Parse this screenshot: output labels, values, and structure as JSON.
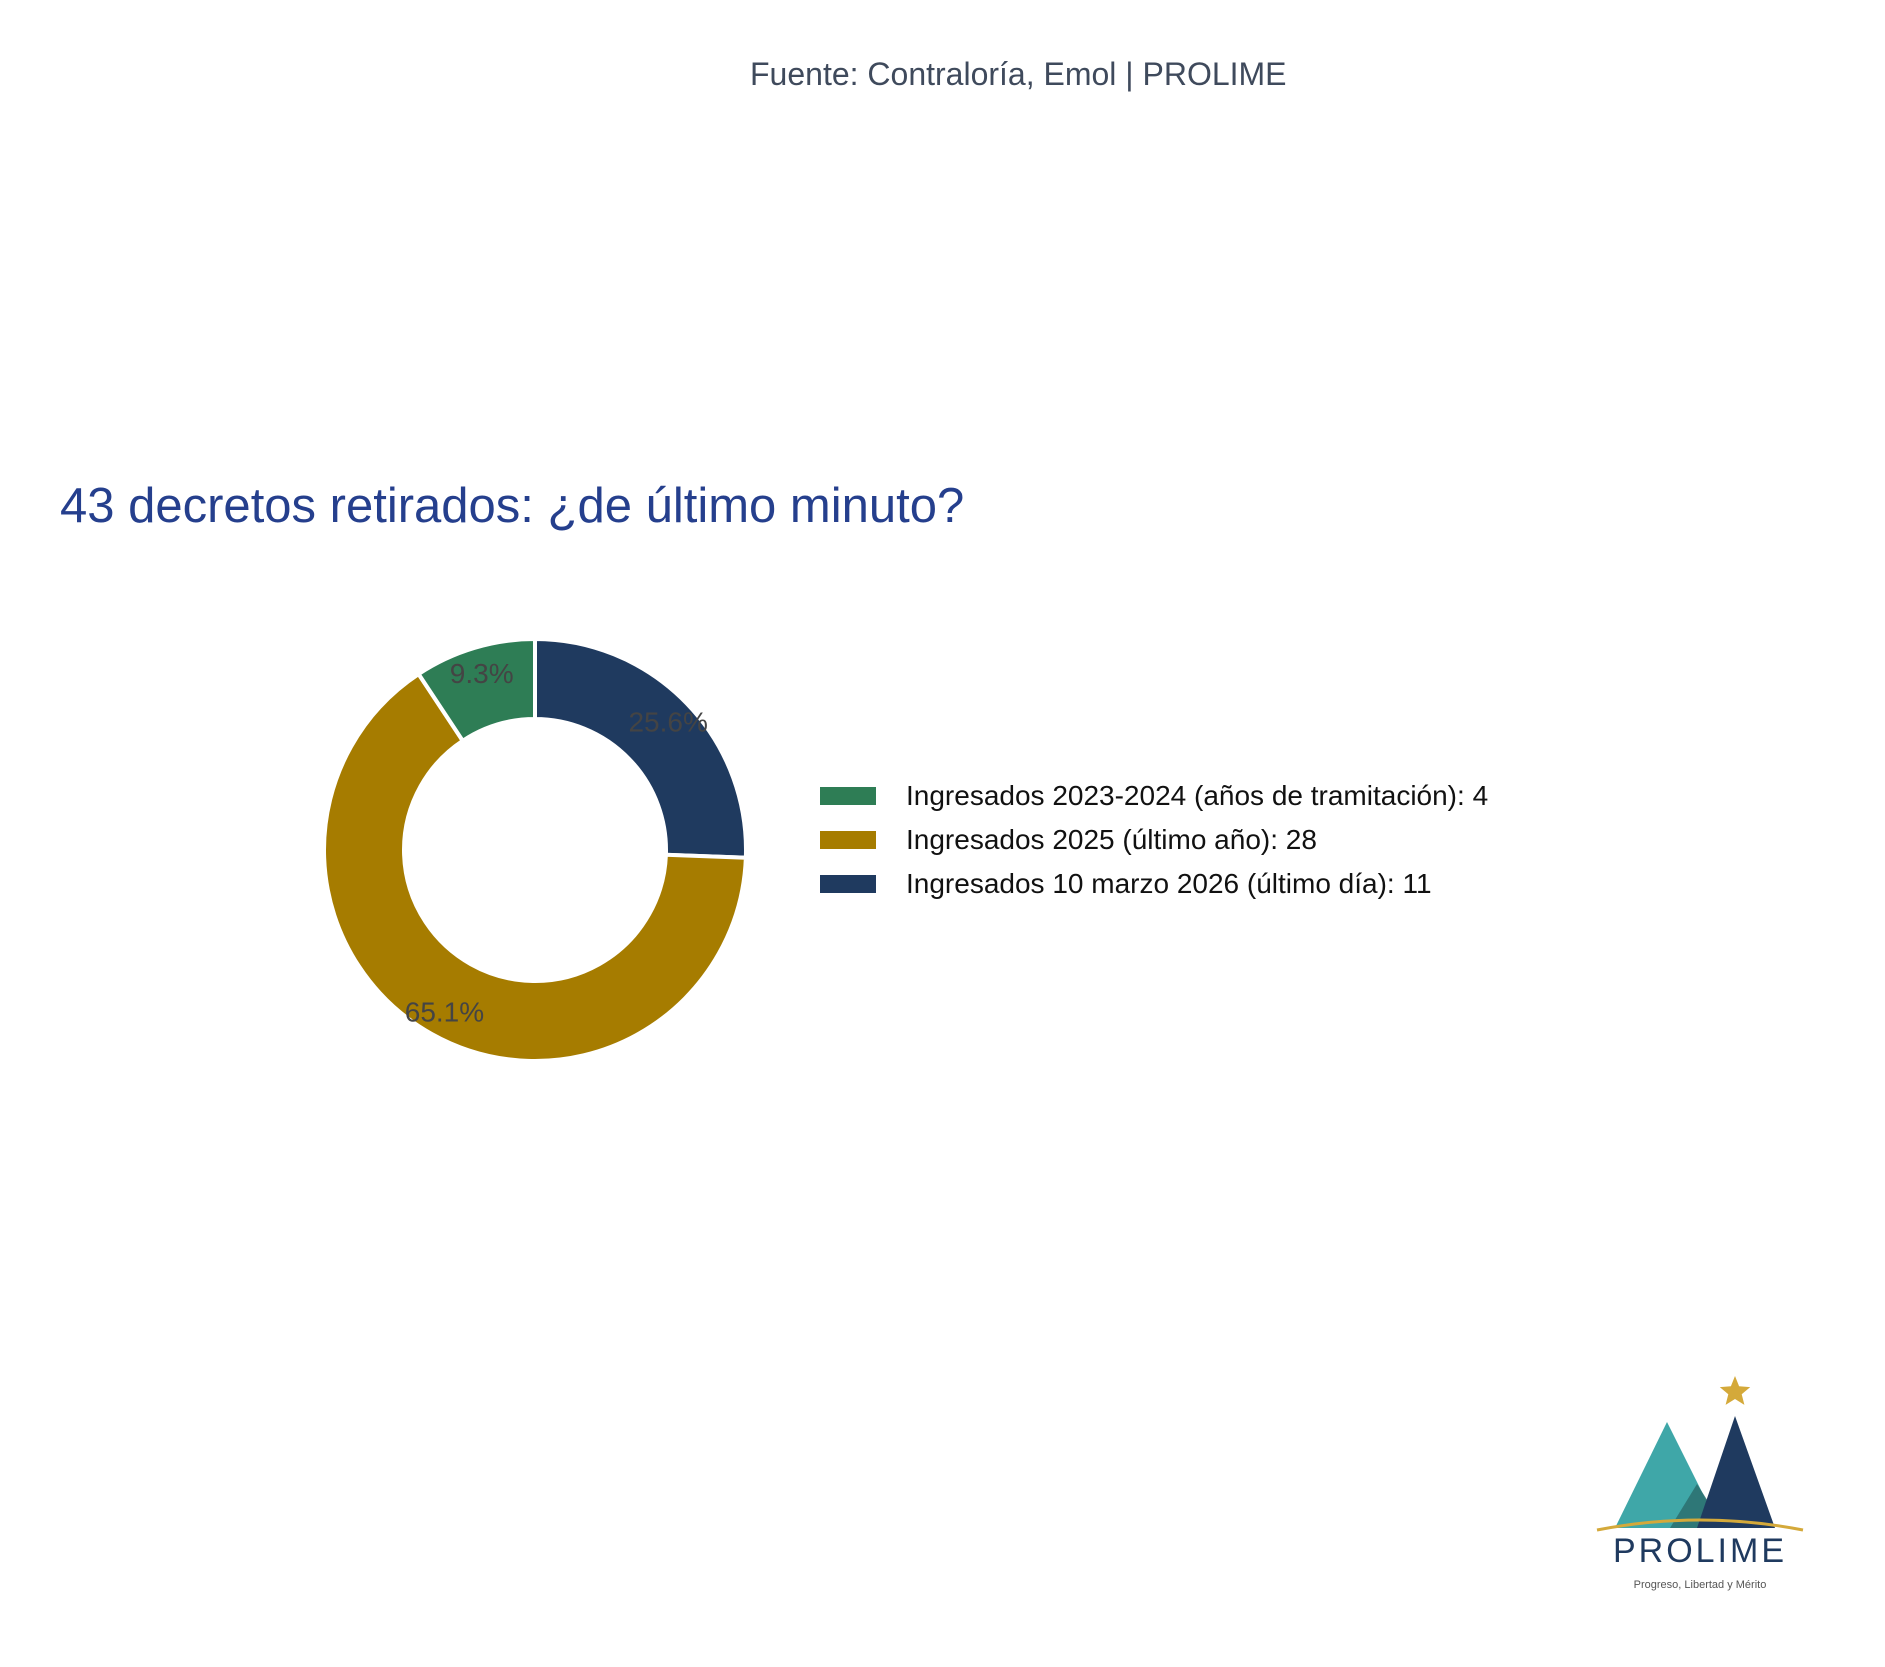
{
  "source": "Fuente: Contraloría, Emol | PROLIME",
  "chart_data": {
    "type": "pie",
    "subtype": "donut",
    "title": "43 decretos retirados: ¿de último minuto?",
    "slices": [
      {
        "label": "Ingresados 2023-2024 (años de tramitación): 4",
        "value": 4,
        "pct_label": "9.3%",
        "color": "#2e7d55"
      },
      {
        "label": "Ingresados 2025 (último año): 28",
        "value": 28,
        "pct_label": "65.1%",
        "color": "#a67c00"
      },
      {
        "label": "Ingresados 10 marzo 2026 (último día): 11",
        "value": 11,
        "pct_label": "25.6%",
        "color": "#1f3a5f"
      }
    ],
    "legend_position": "right"
  },
  "logo": {
    "name": "PROLIME",
    "tagline": "Progreso, Libertad y Mérito",
    "colors": {
      "teal": "#3fa7a8",
      "navy": "#1f3a5f",
      "gold": "#d4a93a"
    }
  }
}
